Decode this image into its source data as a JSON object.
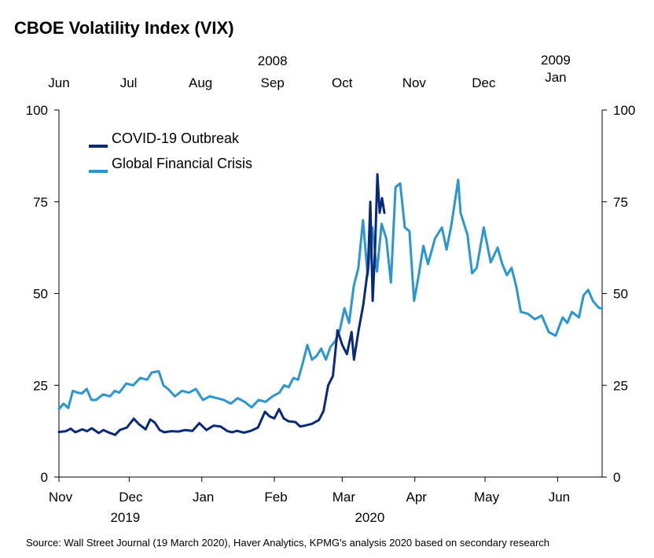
{
  "chart_data": {
    "type": "line",
    "title": "CBOE Volatility Index (VIX)",
    "source": "Source: Wall Street Journal (19 March 2020), Haver Analytics, KPMG's analysis 2020 based on secondary research",
    "ylim": [
      0,
      100
    ],
    "y_ticks": [
      "0",
      "25",
      "50",
      "75",
      "100"
    ],
    "y_ticks_right": [
      "0",
      "25",
      "50",
      "75",
      "100"
    ],
    "legend_position": "top-left",
    "colors": {
      "covid": "#0a2a78",
      "gfc": "#2b96d0"
    },
    "bottom_axis": {
      "months": [
        "Nov",
        "Dec",
        "Jan",
        "Feb",
        "Mar",
        "Apr",
        "May",
        "Jun"
      ],
      "years": [
        "2019",
        "2020"
      ]
    },
    "top_axis": {
      "months": [
        "Jun",
        "Jul",
        "Aug",
        "Sep",
        "Oct",
        "Nov",
        "Dec",
        "Jan"
      ],
      "years": [
        "2008",
        "2009"
      ]
    },
    "series": [
      {
        "name": "COVID-19 Outbreak",
        "color": "#0a2a78",
        "x": [
          "2019-11-01",
          "2019-11-04",
          "2019-11-06",
          "2019-11-08",
          "2019-11-11",
          "2019-11-13",
          "2019-11-15",
          "2019-11-18",
          "2019-11-20",
          "2019-11-22",
          "2019-11-25",
          "2019-11-27",
          "2019-11-30",
          "2019-12-03",
          "2019-12-05",
          "2019-12-08",
          "2019-12-10",
          "2019-12-12",
          "2019-12-14",
          "2019-12-16",
          "2019-12-19",
          "2019-12-22",
          "2019-12-25",
          "2019-12-28",
          "2019-12-31",
          "2020-01-03",
          "2020-01-06",
          "2020-01-09",
          "2020-01-12",
          "2020-01-14",
          "2020-01-16",
          "2020-01-19",
          "2020-01-22",
          "2020-01-25",
          "2020-01-28",
          "2020-01-30",
          "2020-02-01",
          "2020-02-03",
          "2020-02-05",
          "2020-02-07",
          "2020-02-10",
          "2020-02-12",
          "2020-02-14",
          "2020-02-17",
          "2020-02-20",
          "2020-02-22",
          "2020-02-24",
          "2020-02-26",
          "2020-02-28",
          "2020-03-01",
          "2020-03-03",
          "2020-03-05",
          "2020-03-06",
          "2020-03-08",
          "2020-03-10",
          "2020-03-12",
          "2020-03-13",
          "2020-03-14",
          "2020-03-15",
          "2020-03-16",
          "2020-03-17",
          "2020-03-18",
          "2020-03-19"
        ],
        "values": [
          12.3,
          12.5,
          13.2,
          12.2,
          13.0,
          12.5,
          13.3,
          12.0,
          12.8,
          12.2,
          11.5,
          12.8,
          13.5,
          15.9,
          14.5,
          13.0,
          15.7,
          14.8,
          12.8,
          12.2,
          12.5,
          12.4,
          12.8,
          12.6,
          14.7,
          12.8,
          14.0,
          13.8,
          12.5,
          12.2,
          12.6,
          12.1,
          12.6,
          13.5,
          17.8,
          16.5,
          16.0,
          18.5,
          16.0,
          15.2,
          15.0,
          13.8,
          14.0,
          14.5,
          15.5,
          18.0,
          25.0,
          27.5,
          40.0,
          36.0,
          33.5,
          39.5,
          32.0,
          40.0,
          47.0,
          57.0,
          75.0,
          48.0,
          62.0,
          82.5,
          72.0,
          76.0,
          72.0
        ]
      },
      {
        "name": "Global Financial Crisis",
        "color": "#2b96d0",
        "x": [
          "2008-06-01",
          "2008-06-03",
          "2008-06-05",
          "2008-06-07",
          "2008-06-09",
          "2008-06-11",
          "2008-06-13",
          "2008-06-15",
          "2008-06-17",
          "2008-06-20",
          "2008-06-23",
          "2008-06-25",
          "2008-06-27",
          "2008-06-30",
          "2008-07-03",
          "2008-07-06",
          "2008-07-09",
          "2008-07-11",
          "2008-07-14",
          "2008-07-16",
          "2008-07-18",
          "2008-07-21",
          "2008-07-24",
          "2008-07-27",
          "2008-07-30",
          "2008-08-02",
          "2008-08-05",
          "2008-08-08",
          "2008-08-11",
          "2008-08-14",
          "2008-08-17",
          "2008-08-20",
          "2008-08-23",
          "2008-08-26",
          "2008-08-29",
          "2008-09-01",
          "2008-09-04",
          "2008-09-06",
          "2008-09-08",
          "2008-09-10",
          "2008-09-12",
          "2008-09-14",
          "2008-09-16",
          "2008-09-18",
          "2008-09-20",
          "2008-09-22",
          "2008-09-24",
          "2008-09-26",
          "2008-09-28",
          "2008-09-30",
          "2008-10-02",
          "2008-10-04",
          "2008-10-06",
          "2008-10-08",
          "2008-10-10",
          "2008-10-12",
          "2008-10-14",
          "2008-10-16",
          "2008-10-18",
          "2008-10-20",
          "2008-10-22",
          "2008-10-24",
          "2008-10-26",
          "2008-10-28",
          "2008-10-30",
          "2008-11-01",
          "2008-11-03",
          "2008-11-05",
          "2008-11-07",
          "2008-11-10",
          "2008-11-13",
          "2008-11-15",
          "2008-11-17",
          "2008-11-20",
          "2008-11-21",
          "2008-11-24",
          "2008-11-26",
          "2008-11-28",
          "2008-12-01",
          "2008-12-04",
          "2008-12-07",
          "2008-12-09",
          "2008-12-11",
          "2008-12-13",
          "2008-12-15",
          "2008-12-17",
          "2008-12-20",
          "2008-12-23",
          "2008-12-26",
          "2008-12-29",
          "2009-01-01",
          "2009-01-04",
          "2009-01-06",
          "2009-01-08",
          "2009-01-11",
          "2009-01-13",
          "2009-01-15",
          "2009-01-17",
          "2009-01-19",
          "2009-01-20",
          "2009-01-21"
        ],
        "values": [
          18.5,
          20.0,
          18.8,
          23.5,
          23.0,
          22.8,
          24.0,
          21.0,
          21.0,
          22.5,
          22.0,
          23.5,
          23.0,
          25.5,
          25.0,
          27.0,
          26.5,
          28.5,
          28.8,
          25.0,
          24.0,
          22.0,
          23.5,
          23.0,
          24.0,
          21.0,
          22.0,
          21.5,
          21.0,
          20.0,
          21.5,
          20.5,
          19.0,
          21.0,
          20.5,
          22.0,
          23.0,
          25.0,
          24.5,
          27.0,
          26.5,
          31.0,
          36.0,
          32.0,
          33.0,
          35.0,
          32.0,
          35.5,
          37.0,
          40.0,
          46.0,
          42.0,
          52.0,
          57.0,
          70.0,
          55.0,
          68.0,
          56.0,
          69.0,
          65.0,
          53.0,
          79.0,
          80.0,
          68.0,
          67.0,
          48.0,
          55.0,
          63.0,
          58.0,
          65.0,
          68.0,
          62.0,
          68.5,
          81.0,
          72.0,
          66.0,
          55.5,
          57.0,
          68.0,
          58.5,
          62.5,
          58.0,
          55.0,
          57.0,
          52.0,
          45.0,
          44.5,
          43.0,
          44.0,
          39.5,
          38.5,
          43.5,
          42.0,
          45.0,
          43.5,
          49.5,
          51.0,
          48.0,
          46.5,
          46.0,
          46.0
        ]
      }
    ]
  }
}
